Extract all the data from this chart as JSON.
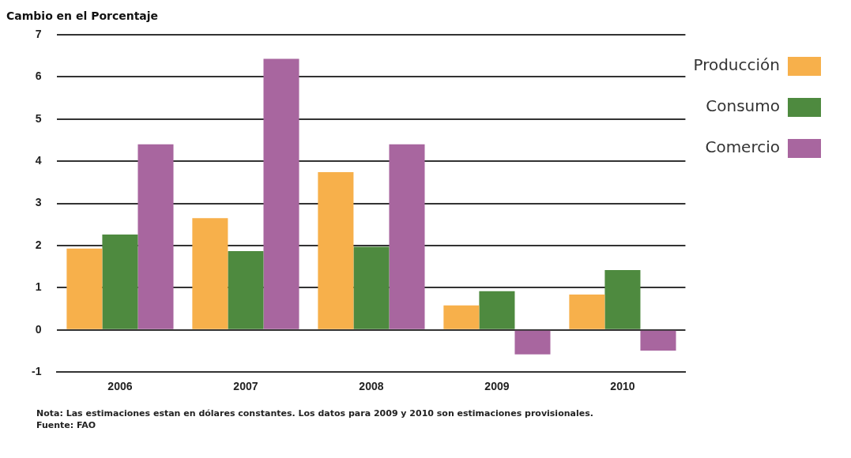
{
  "chart_data": {
    "type": "bar",
    "ylabel": "Cambio en el Porcentaje",
    "categories": [
      "2006",
      "2007",
      "2008",
      "2009",
      "2010"
    ],
    "series": [
      {
        "name": "Producción",
        "color": "#f7b04b",
        "values": [
          1.93,
          2.65,
          3.74,
          0.58,
          0.84
        ]
      },
      {
        "name": "Consumo",
        "color": "#4e8a3f",
        "values": [
          2.26,
          1.87,
          1.97,
          0.92,
          1.42
        ]
      },
      {
        "name": "Comercio",
        "color": "#a8669f",
        "values": [
          4.4,
          6.43,
          4.4,
          -0.58,
          -0.49
        ]
      }
    ],
    "ylim": [
      -1,
      7
    ],
    "yticks": [
      -1,
      0,
      1,
      2,
      3,
      4,
      5,
      6,
      7
    ],
    "grid": "y",
    "legend": "top right",
    "annotations": [
      "Nota: Las estimaciones estan en dólares constantes. Los datos para 2009 y 2010 son estimaciones provisionales.",
      "Fuente: FAO"
    ]
  }
}
